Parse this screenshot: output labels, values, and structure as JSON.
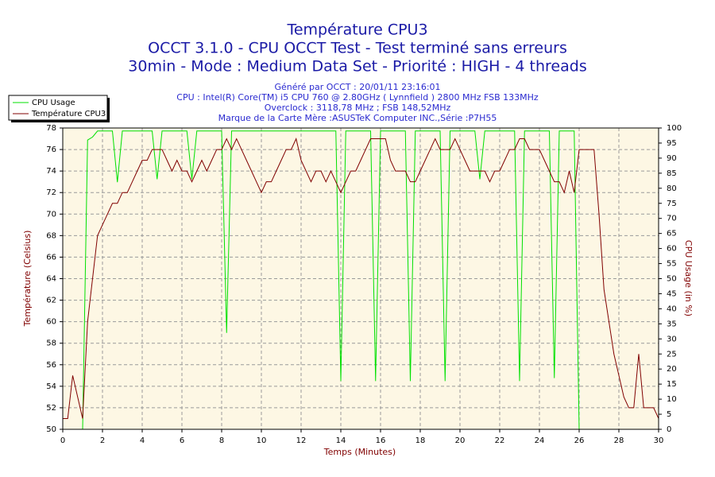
{
  "chart_data": {
    "type": "line",
    "title": "Température CPU3",
    "subtitles": [
      "OCCT 3.1.0 - CPU OCCT Test - Test terminé sans erreurs",
      "30min - Mode : Medium Data Set - Priorité : HIGH - 4 threads"
    ],
    "info": [
      "Généré par OCCT : 20/01/11 23:16:01",
      "CPU : Intel(R) Core(TM) i5 CPU 760 @ 2.80GHz ( Lynnfield ) 2800 MHz FSB 133MHz",
      "Overclock : 3118,78 MHz ; FSB 148,52MHz",
      "Marque de la Carte Mère :ASUSTeK Computer INC.,Série :P7H55"
    ],
    "x_label": "Temps (Minutes)",
    "y_label": "Température (Celsius)",
    "y2_label": "CPU Usage (in %)",
    "grid": true,
    "legend": "top-left",
    "x": [
      0,
      0.25,
      0.5,
      0.75,
      1,
      1.25,
      1.5,
      1.75,
      2,
      2.25,
      2.5,
      2.75,
      3,
      3.25,
      3.5,
      3.75,
      4,
      4.25,
      4.5,
      4.75,
      5,
      5.25,
      5.5,
      5.75,
      6,
      6.25,
      6.5,
      6.75,
      7,
      7.25,
      7.5,
      7.75,
      8,
      8.25,
      8.5,
      8.75,
      9,
      9.25,
      9.5,
      9.75,
      10,
      10.25,
      10.5,
      10.75,
      11,
      11.25,
      11.5,
      11.75,
      12,
      12.25,
      12.5,
      12.75,
      13,
      13.25,
      13.5,
      13.75,
      14,
      14.25,
      14.5,
      14.75,
      15,
      15.25,
      15.5,
      15.75,
      16,
      16.25,
      16.5,
      16.75,
      17,
      17.25,
      17.5,
      17.75,
      18,
      18.25,
      18.5,
      18.75,
      19,
      19.25,
      19.5,
      19.75,
      20,
      20.25,
      20.5,
      20.75,
      21,
      21.25,
      21.5,
      21.75,
      22,
      22.25,
      22.5,
      22.75,
      23,
      23.25,
      23.5,
      23.75,
      24,
      24.25,
      24.5,
      24.75,
      25,
      25.25,
      25.5,
      25.75,
      26,
      26.25,
      26.5,
      26.75,
      27,
      27.25,
      27.5,
      27.75,
      28,
      28.25,
      28.5,
      28.75,
      29,
      29.25,
      29.5,
      29.75,
      30
    ],
    "series": [
      {
        "name": "CPU Usage",
        "color": "#00e000",
        "axis": "y2",
        "values": [
          0,
          0,
          0,
          0,
          0,
          96,
          97,
          99,
          99,
          99,
          99,
          82,
          99,
          99,
          99,
          99,
          99,
          99,
          99,
          83,
          99,
          99,
          99,
          99,
          99,
          99,
          83,
          99,
          99,
          99,
          99,
          99,
          99,
          32,
          99,
          99,
          99,
          99,
          99,
          99,
          99,
          99,
          99,
          99,
          99,
          99,
          99,
          99,
          99,
          99,
          99,
          99,
          99,
          99,
          99,
          99,
          16,
          99,
          99,
          99,
          99,
          99,
          99,
          16,
          99,
          99,
          99,
          99,
          99,
          99,
          16,
          99,
          99,
          99,
          99,
          99,
          99,
          16,
          99,
          99,
          99,
          99,
          99,
          99,
          83,
          99,
          99,
          99,
          99,
          99,
          99,
          99,
          16,
          99,
          99,
          99,
          99,
          99,
          99,
          17,
          99,
          99,
          99,
          99,
          0,
          0,
          0,
          0,
          0,
          0,
          0,
          0,
          0,
          0,
          0,
          0,
          0,
          0,
          0,
          0,
          0
        ]
      },
      {
        "name": "Température CPU3",
        "color": "#800000",
        "values": [
          51,
          51,
          55,
          53,
          51,
          60,
          64,
          68,
          69,
          70,
          71,
          71,
          72,
          72,
          73,
          74,
          75,
          75,
          76,
          76,
          76,
          75,
          74,
          75,
          74,
          74,
          73,
          74,
          75,
          74,
          75,
          76,
          76,
          77,
          76,
          77,
          76,
          75,
          74,
          73,
          72,
          73,
          73,
          74,
          75,
          76,
          76,
          77,
          75,
          74,
          73,
          74,
          74,
          73,
          74,
          73,
          72,
          73,
          74,
          74,
          75,
          76,
          77,
          77,
          77,
          77,
          75,
          74,
          74,
          74,
          73,
          73,
          74,
          75,
          76,
          77,
          76,
          76,
          76,
          77,
          76,
          75,
          74,
          74,
          74,
          74,
          73,
          74,
          74,
          75,
          76,
          76,
          77,
          77,
          76,
          76,
          76,
          75,
          74,
          73,
          73,
          72,
          74,
          72,
          76,
          76,
          76,
          76,
          70,
          63,
          60,
          57,
          55,
          53,
          52,
          52,
          57,
          52,
          52,
          52,
          51
        ]
      }
    ],
    "xlim": [
      0,
      30
    ],
    "xticks": [
      0,
      2,
      4,
      6,
      8,
      10,
      12,
      14,
      16,
      18,
      20,
      22,
      24,
      26,
      28,
      30
    ],
    "ylim": [
      50,
      78
    ],
    "yticks": [
      50,
      52,
      54,
      56,
      58,
      60,
      62,
      64,
      66,
      68,
      70,
      72,
      74,
      76,
      78
    ],
    "y2lim": [
      0,
      100
    ],
    "y2ticks": [
      0,
      5,
      10,
      15,
      20,
      25,
      30,
      35,
      40,
      45,
      50,
      55,
      60,
      65,
      70,
      75,
      80,
      85,
      90,
      95,
      100
    ]
  }
}
